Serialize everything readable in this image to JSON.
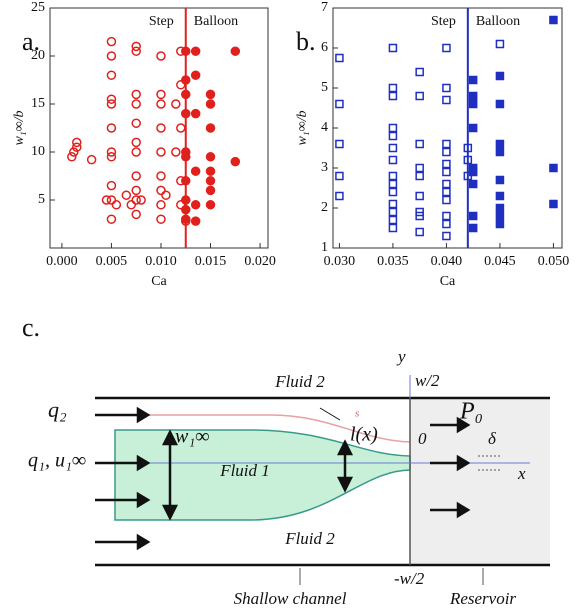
{
  "chart_data": [
    {
      "type": "scatter",
      "panel": "a.",
      "xlabel": "Ca",
      "ylabel": "w₁∞/b",
      "xlim": [
        -0.0012,
        0.0208
      ],
      "ylim": [
        0,
        25
      ],
      "xticks": [
        {
          "value": 0,
          "label": "0.000"
        },
        {
          "value": 0.005,
          "label": "0.005"
        },
        {
          "value": 0.01,
          "label": "0.010"
        },
        {
          "value": 0.015,
          "label": "0.015"
        },
        {
          "value": 0.02,
          "label": "0.020"
        }
      ],
      "yticks": [
        5,
        10,
        15,
        20,
        25
      ],
      "divider": 0.0125,
      "divider_color": "#e0201c",
      "annotations": [
        "Step",
        "Balloon"
      ],
      "series": [
        {
          "color": "#e0201c",
          "marker": "circle",
          "filled": false,
          "x": [
            0.001,
            0.0015,
            0.0015,
            0.0012,
            0.003,
            0.005,
            0.005,
            0.005,
            0.005,
            0.005,
            0.005,
            0.005,
            0.005,
            0.005,
            0.005,
            0.005,
            0.0045,
            0.0055,
            0.0065,
            0.007,
            0.0075,
            0.0075,
            0.0075,
            0.0075,
            0.0075,
            0.0075,
            0.0075,
            0.0075,
            0.0075,
            0.0075,
            0.0075,
            0.008,
            0.01,
            0.01,
            0.01,
            0.01,
            0.01,
            0.01,
            0.01,
            0.01,
            0.0105,
            0.01,
            0.012,
            0.012,
            0.0115,
            0.012,
            0.0115,
            0.012,
            0.012,
            0.0125
          ],
          "values": [
            9.5,
            10.5,
            11,
            10,
            9.2,
            21.5,
            20,
            18,
            15.5,
            15,
            12.5,
            10,
            9.5,
            6.5,
            5,
            3,
            5,
            4.5,
            5.5,
            4.5,
            21,
            20.5,
            16,
            15,
            13,
            11,
            10,
            7.5,
            6,
            5,
            3.5,
            5,
            20,
            16,
            15,
            12.5,
            10,
            7.5,
            6,
            4.5,
            5.5,
            3,
            20.5,
            17,
            15,
            12.5,
            10,
            7,
            4.5,
            2.8
          ]
        },
        {
          "color": "#e0201c",
          "marker": "circle",
          "filled": true,
          "x": [
            0.0125,
            0.0125,
            0.0125,
            0.0125,
            0.0125,
            0.0125,
            0.0125,
            0.0125,
            0.0125,
            0.0125,
            0.0135,
            0.0135,
            0.0135,
            0.0135,
            0.0135,
            0.0135,
            0.015,
            0.015,
            0.015,
            0.015,
            0.015,
            0.015,
            0.015,
            0.015,
            0.0175,
            0.0175
          ],
          "values": [
            20.5,
            17.5,
            16,
            14,
            10,
            9.5,
            7,
            5,
            4,
            3,
            20.5,
            18,
            14,
            8,
            4.5,
            2.8,
            16,
            15,
            12.5,
            9.5,
            8,
            7,
            6,
            4.5,
            20.5,
            9
          ]
        }
      ]
    },
    {
      "type": "scatter",
      "panel": "b.",
      "xlabel": "Ca",
      "ylabel": "w₁∞/b",
      "xlim": [
        0.0294,
        0.0508
      ],
      "ylim": [
        1,
        7
      ],
      "xticks": [
        {
          "value": 0.03,
          "label": "0.030"
        },
        {
          "value": 0.035,
          "label": "0.035"
        },
        {
          "value": 0.04,
          "label": "0.040"
        },
        {
          "value": 0.045,
          "label": "0.045"
        },
        {
          "value": 0.05,
          "label": "0.050"
        }
      ],
      "yticks": [
        1,
        2,
        3,
        4,
        5,
        6,
        7
      ],
      "divider": 0.042,
      "divider_color": "#1f2fbf",
      "annotations": [
        "Step",
        "Balloon"
      ],
      "series": [
        {
          "color": "#1f2fbf",
          "marker": "square",
          "filled": false,
          "x": [
            0.03,
            0.03,
            0.03,
            0.03,
            0.03,
            0.035,
            0.035,
            0.035,
            0.035,
            0.035,
            0.035,
            0.035,
            0.035,
            0.035,
            0.035,
            0.035,
            0.035,
            0.035,
            0.035,
            0.0375,
            0.0375,
            0.0375,
            0.0375,
            0.0375,
            0.0375,
            0.0375,
            0.0375,
            0.0375,
            0.04,
            0.04,
            0.04,
            0.04,
            0.04,
            0.04,
            0.04,
            0.04,
            0.04,
            0.04,
            0.04,
            0.04,
            0.04,
            0.042,
            0.042,
            0.042,
            0.045
          ],
          "values": [
            5.75,
            4.6,
            3.6,
            2.8,
            2.3,
            6,
            5,
            4.8,
            4,
            3.8,
            3.5,
            3.2,
            2.8,
            2.6,
            2.4,
            2.1,
            1.9,
            1.7,
            1.5,
            5.4,
            4.8,
            3.6,
            3,
            2.8,
            2.3,
            1.9,
            1.8,
            1.4,
            6,
            5,
            4.7,
            3.6,
            3.4,
            3.1,
            2.9,
            2.6,
            2.4,
            2.2,
            1.8,
            1.6,
            1.3,
            3.5,
            3.2,
            2.8,
            6.1
          ]
        },
        {
          "color": "#1f2fbf",
          "marker": "square",
          "filled": true,
          "x": [
            0.0425,
            0.0425,
            0.0425,
            0.0425,
            0.0425,
            0.0425,
            0.0425,
            0.0425,
            0.0425,
            0.045,
            0.045,
            0.045,
            0.045,
            0.045,
            0.045,
            0.045,
            0.045,
            0.045,
            0.05,
            0.05,
            0.05
          ],
          "values": [
            5.2,
            4.8,
            4.6,
            4,
            3,
            2.9,
            2.6,
            1.8,
            1.5,
            5.3,
            4.6,
            3.6,
            3.4,
            2.7,
            2.3,
            2,
            1.8,
            1.6,
            6.7,
            3,
            2.1
          ]
        }
      ]
    }
  ],
  "diagram": {
    "panel": "c.",
    "fluid_2_top": "Fluid 2",
    "fluid_1": "Fluid 1",
    "fluid_2_bottom": "Fluid 2",
    "q2": "q₂",
    "q1": "q₁, u₁∞",
    "w1": "w₁∞",
    "lx": "l(x)",
    "s": "s",
    "origin": "0",
    "half_width": "w/2",
    "neg_half_width": "-w/2",
    "p0": "P₀",
    "delta": "δ",
    "x_axis": "x",
    "y_axis": "y",
    "channel": "Shallow channel",
    "reservoir": "Reservoir"
  }
}
